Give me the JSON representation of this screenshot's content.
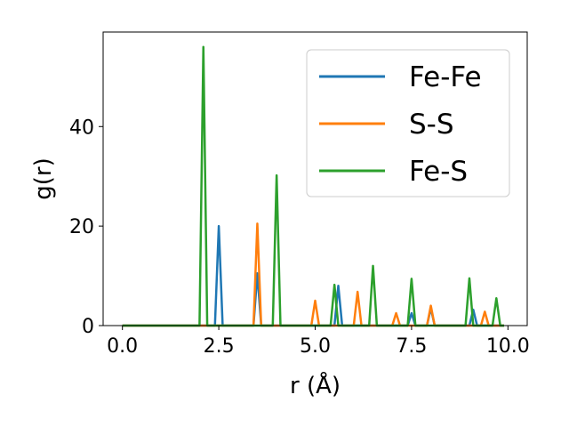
{
  "chart_data": {
    "type": "line",
    "title": "",
    "xlabel": "r (Å)",
    "ylabel": "g(r)",
    "xlim": [
      -0.5,
      10.5
    ],
    "ylim": [
      0,
      59
    ],
    "xticks": [
      0.0,
      2.5,
      5.0,
      7.5,
      10.0
    ],
    "xtick_labels": [
      "0.0",
      "2.5",
      "5.0",
      "7.5",
      "10.0"
    ],
    "yticks": [
      0,
      20,
      40
    ],
    "ytick_labels": [
      "0",
      "20",
      "40"
    ],
    "grid": false,
    "legend_position": "top-right",
    "series": [
      {
        "name": "Fe-Fe",
        "color": "#1f77b4",
        "points": [
          [
            0.0,
            0
          ],
          [
            2.4,
            0
          ],
          [
            2.5,
            20
          ],
          [
            2.6,
            0
          ],
          [
            3.4,
            0
          ],
          [
            3.5,
            10.5
          ],
          [
            3.6,
            0
          ],
          [
            5.5,
            0
          ],
          [
            5.6,
            8
          ],
          [
            5.7,
            0
          ],
          [
            7.4,
            0
          ],
          [
            7.5,
            2.5
          ],
          [
            7.6,
            0
          ],
          [
            7.9,
            0
          ],
          [
            8.0,
            3.5
          ],
          [
            8.1,
            0
          ],
          [
            9.0,
            0
          ],
          [
            9.1,
            3.2
          ],
          [
            9.2,
            0
          ],
          [
            9.9,
            0
          ]
        ]
      },
      {
        "name": "S-S",
        "color": "#ff7f0e",
        "points": [
          [
            0.0,
            0
          ],
          [
            3.4,
            0
          ],
          [
            3.5,
            20.5
          ],
          [
            3.6,
            0
          ],
          [
            4.9,
            0
          ],
          [
            5.0,
            5
          ],
          [
            5.1,
            0
          ],
          [
            6.0,
            0
          ],
          [
            6.1,
            6.8
          ],
          [
            6.2,
            0
          ],
          [
            7.0,
            0
          ],
          [
            7.1,
            2.5
          ],
          [
            7.2,
            0
          ],
          [
            7.9,
            0
          ],
          [
            8.0,
            4
          ],
          [
            8.1,
            0
          ],
          [
            9.3,
            0
          ],
          [
            9.4,
            2.8
          ],
          [
            9.5,
            0
          ],
          [
            9.9,
            0
          ]
        ]
      },
      {
        "name": "Fe-S",
        "color": "#2ca02c",
        "points": [
          [
            0.0,
            0
          ],
          [
            2.0,
            0
          ],
          [
            2.1,
            56
          ],
          [
            2.2,
            0
          ],
          [
            3.9,
            0
          ],
          [
            4.0,
            30.2
          ],
          [
            4.1,
            0
          ],
          [
            5.4,
            0
          ],
          [
            5.5,
            8.2
          ],
          [
            5.6,
            0
          ],
          [
            6.4,
            0
          ],
          [
            6.5,
            12
          ],
          [
            6.6,
            0
          ],
          [
            7.4,
            0
          ],
          [
            7.5,
            9.4
          ],
          [
            7.6,
            0
          ],
          [
            8.9,
            0
          ],
          [
            9.0,
            9.5
          ],
          [
            9.1,
            0
          ],
          [
            9.6,
            0
          ],
          [
            9.7,
            5.5
          ],
          [
            9.8,
            0
          ],
          [
            9.9,
            0
          ]
        ]
      }
    ]
  }
}
